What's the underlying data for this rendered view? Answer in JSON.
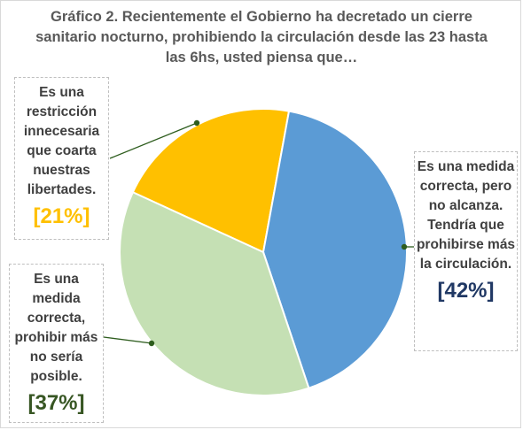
{
  "chart_data": {
    "type": "pie",
    "title": "Gráfico 2. Recientemente el Gobierno ha decretado un cierre sanitario nocturno, prohibiendo la circulación desde las 23 hasta las 6hs, usted piensa que…",
    "slices": [
      {
        "label": "Es una restricción innecesaria que coarta nuestras libertades.",
        "value": 21,
        "value_label": "[21%]",
        "color": "#ffc000",
        "label_color": "#ffc000"
      },
      {
        "label": "Es una medida correcta, pero no alcanza. Tendría que prohibirse más la circulación.",
        "value": 42,
        "value_label": "[42%]",
        "color": "#5b9bd5",
        "label_color": "#203864"
      },
      {
        "label": "Es una medida correcta, prohibir más no sería posible.",
        "value": 37,
        "value_label": "[37%]",
        "color": "#c5e0b4",
        "label_color": "#375623"
      }
    ]
  }
}
